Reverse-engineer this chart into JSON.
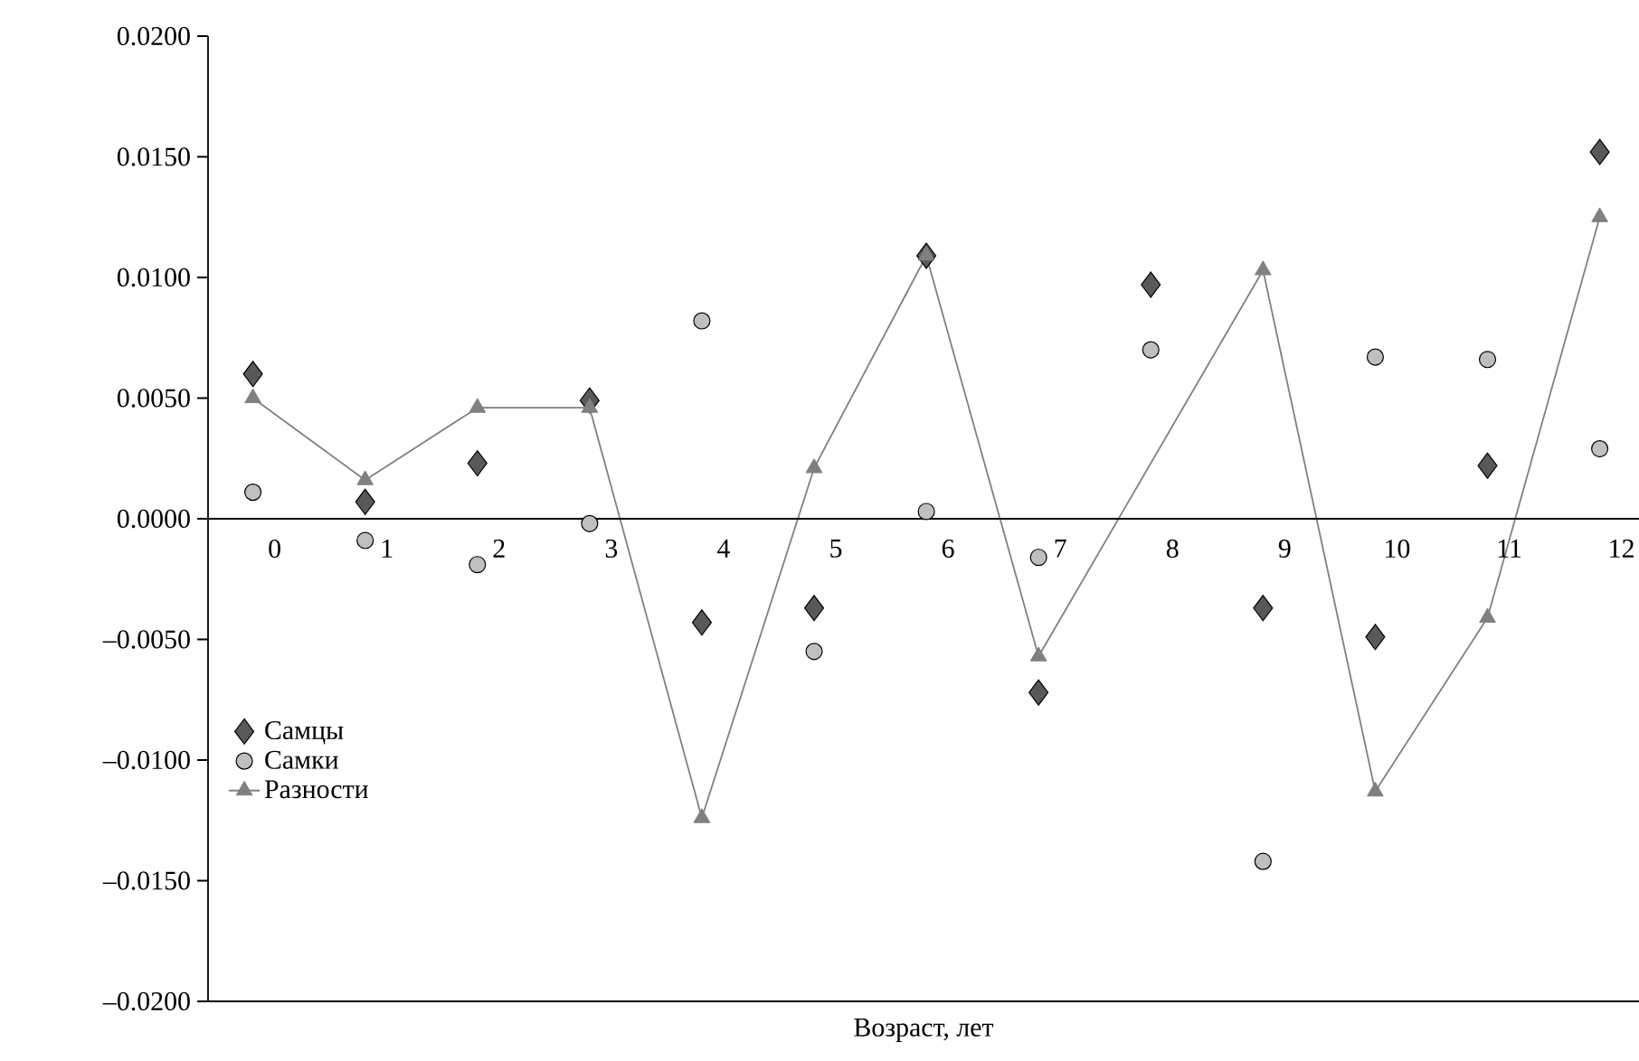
{
  "chart_data": {
    "type": "scatter",
    "xlabel": "Возраст, лет",
    "categories": [
      "0",
      "1",
      "2",
      "3",
      "4",
      "5",
      "6",
      "7",
      "8",
      "9",
      "10",
      "11",
      "12"
    ],
    "ylim": [
      -0.02,
      0.02
    ],
    "yticks": [
      {
        "value": -0.02,
        "label": "–0.0200"
      },
      {
        "value": -0.015,
        "label": "–0.0150"
      },
      {
        "value": -0.01,
        "label": "–0.0100"
      },
      {
        "value": -0.005,
        "label": "–0.0050"
      },
      {
        "value": 0,
        "label": "0.0000"
      },
      {
        "value": 0.005,
        "label": "0.0050"
      },
      {
        "value": 0.01,
        "label": "0.0100"
      },
      {
        "value": 0.015,
        "label": "0.0150"
      },
      {
        "value": 0.02,
        "label": "0.0200"
      }
    ],
    "legend": "bottom left",
    "grid": false,
    "series": [
      {
        "name": "Самцы",
        "marker": "diamond",
        "color": "#595959",
        "values": [
          0.006,
          0.0007,
          0.0023,
          0.0049,
          -0.0043,
          -0.0037,
          0.0109,
          -0.0072,
          0.0097,
          -0.0037,
          -0.0049,
          0.0022,
          0.0152
        ]
      },
      {
        "name": "Самки",
        "marker": "circle",
        "color": "#bfbfbf",
        "values": [
          0.0011,
          -0.0009,
          -0.0019,
          -0.0002,
          0.0082,
          -0.0055,
          0.0003,
          -0.0016,
          0.007,
          -0.0142,
          0.0067,
          0.0066,
          0.0029
        ]
      },
      {
        "name": "Разности",
        "type": "line",
        "marker": "triangle",
        "color": "#808080",
        "values": [
          0.005,
          0.0016,
          0.0046,
          0.0046,
          -0.0124,
          0.0021,
          0.0109,
          -0.0057,
          null,
          0.0103,
          -0.0113,
          -0.0041,
          0.0125
        ]
      }
    ]
  }
}
